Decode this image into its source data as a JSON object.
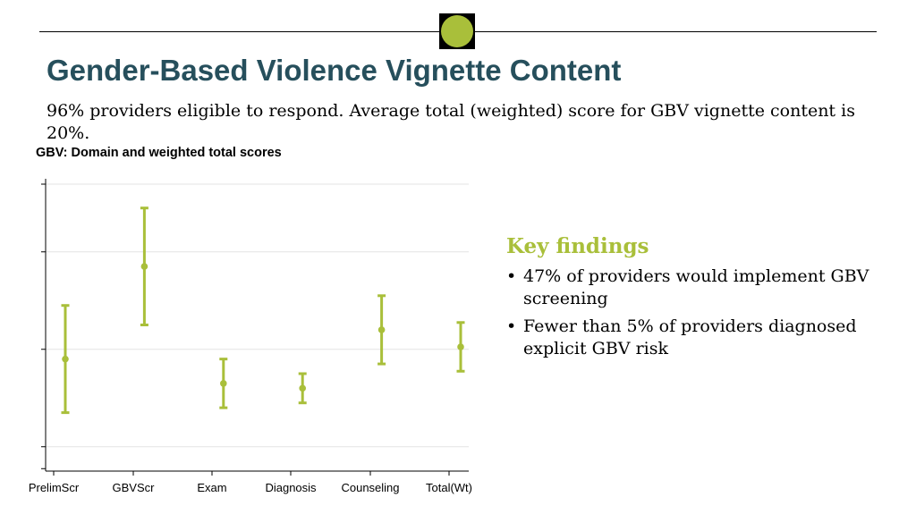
{
  "slide": {
    "title": "Gender-Based Violence Vignette Content",
    "subtitle": "96% providers eligible to respond. Average total (weighted) score for GBV vignette content is 20%."
  },
  "colors": {
    "accent": "#a9bf3a",
    "title": "#264f5c"
  },
  "key_findings": {
    "heading": "Key findings",
    "items": [
      "47% of providers would implement GBV screening",
      "Fewer than 5% of providers diagnosed explicit GBV risk"
    ]
  },
  "chart_data": {
    "type": "scatter",
    "style": "point-with-error-bars",
    "title": "GBV: Domain and weighted total scores",
    "xlabel": "",
    "ylabel": "",
    "y_tick_labels_shown": false,
    "ylim": [
      -0.05,
      0.55
    ],
    "yticks": [
      0,
      0.2,
      0.4
    ],
    "grid": true,
    "categories": [
      "PrelimScr",
      "GBVScr",
      "Exam",
      "Diagnosis",
      "Counseling",
      "Total(Wt)"
    ],
    "series": [
      {
        "values": [
          0.18,
          0.37,
          0.13,
          0.12,
          0.24,
          0.205
        ],
        "lower": [
          0.07,
          0.25,
          0.08,
          0.09,
          0.17,
          0.155
        ],
        "upper": [
          0.29,
          0.49,
          0.18,
          0.15,
          0.31,
          0.255
        ]
      }
    ]
  }
}
